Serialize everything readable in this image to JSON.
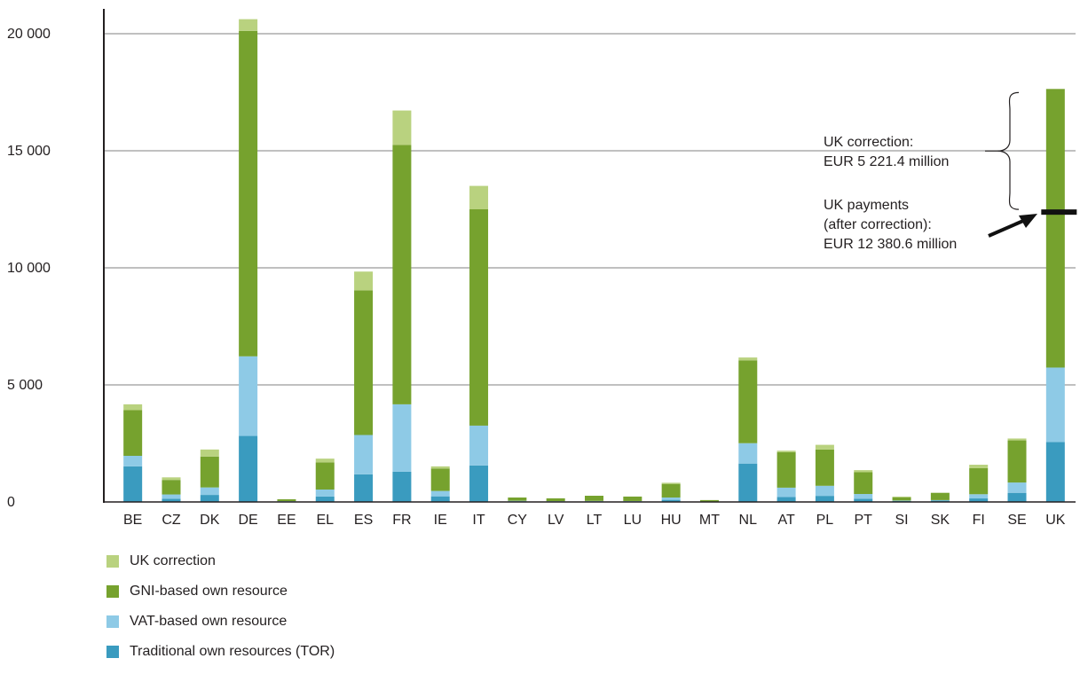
{
  "chart_data": {
    "type": "bar",
    "stacked": true,
    "categories": [
      "BE",
      "CZ",
      "DK",
      "DE",
      "EE",
      "EL",
      "ES",
      "FR",
      "IE",
      "IT",
      "CY",
      "LV",
      "LT",
      "LU",
      "HU",
      "MT",
      "NL",
      "AT",
      "PL",
      "PT",
      "SI",
      "SK",
      "FI",
      "SE",
      "UK"
    ],
    "series": [
      {
        "name": "Traditional own resources (TOR)",
        "color": "#3a9bbf",
        "values": [
          1520,
          140,
          300,
          2820,
          20,
          230,
          1180,
          1290,
          240,
          1560,
          30,
          20,
          30,
          20,
          90,
          10,
          1640,
          210,
          260,
          140,
          40,
          60,
          150,
          390,
          2560
        ]
      },
      {
        "name": "VAT-based own resource",
        "color": "#8ecae6",
        "values": [
          450,
          180,
          320,
          3400,
          15,
          300,
          1680,
          2880,
          230,
          1700,
          20,
          15,
          15,
          20,
          100,
          10,
          870,
          400,
          430,
          200,
          20,
          20,
          180,
          440,
          3180
        ]
      },
      {
        "name": "GNI-based own resource",
        "color": "#76a22e",
        "values": [
          1950,
          620,
          1320,
          13900,
          80,
          1160,
          6180,
          11080,
          960,
          9240,
          140,
          120,
          220,
          190,
          580,
          60,
          3540,
          1520,
          1550,
          930,
          140,
          310,
          1110,
          1800,
          11900
        ]
      },
      {
        "name": "UK correction",
        "color": "#b9d27f",
        "values": [
          250,
          110,
          300,
          500,
          0,
          160,
          800,
          1470,
          90,
          1000,
          0,
          0,
          0,
          0,
          50,
          0,
          120,
          60,
          200,
          90,
          30,
          0,
          150,
          80,
          0
        ]
      }
    ],
    "legend_order": [
      "UK correction",
      "GNI-based own resource",
      "VAT-based own resource",
      "Traditional own resources (TOR)"
    ],
    "ylim": [
      0,
      20000
    ],
    "yticks": [
      0,
      5000,
      10000,
      15000,
      20000
    ],
    "ytick_labels": [
      "0",
      "5 000",
      "10 000",
      "15 000",
      "20 000"
    ],
    "grid": true,
    "legend_position": "bottom-left",
    "title": "",
    "xlabel": "",
    "ylabel": "",
    "annotations": {
      "uk_correction_lines": [
        "UK correction:",
        "EUR 5 221.4 million"
      ],
      "uk_payments_lines": [
        "UK payments",
        "(after correction):",
        "EUR 12 380.6 million"
      ],
      "uk_top_value": 17600,
      "uk_payments_value": 12380.6
    }
  }
}
